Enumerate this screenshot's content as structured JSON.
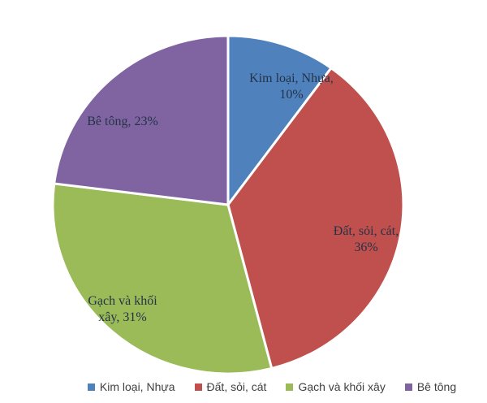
{
  "chart_data": {
    "type": "pie",
    "title": "",
    "categories": [
      "Kim loại, Nhựa",
      "Đất, sỏi, cát",
      "Gạch và khối xây",
      "Bê tông"
    ],
    "values": [
      10,
      36,
      31,
      23
    ],
    "unit": "%",
    "colors": [
      "#4F81BD",
      "#C0504D",
      "#9BBB59",
      "#8064A2"
    ],
    "start_angle_deg": 0,
    "direction": "clockwise",
    "separator_color": "#FFFFFF",
    "label_color": "#243347",
    "slice_labels": [
      {
        "lines": [
          "Kim loại, Nhựa,",
          "10%"
        ]
      },
      {
        "lines": [
          "Đất, sỏi, cát,",
          "36%"
        ]
      },
      {
        "lines": [
          "Gạch và khối",
          "xây, 31%"
        ]
      },
      {
        "lines": [
          "Bê tông, 23%"
        ]
      }
    ],
    "legend": {
      "position": "bottom",
      "text_color": "#404040",
      "items": [
        "Kim loại, Nhựa",
        "Đất, sỏi, cát",
        "Gạch và khối xây",
        "Bê tông"
      ]
    }
  }
}
